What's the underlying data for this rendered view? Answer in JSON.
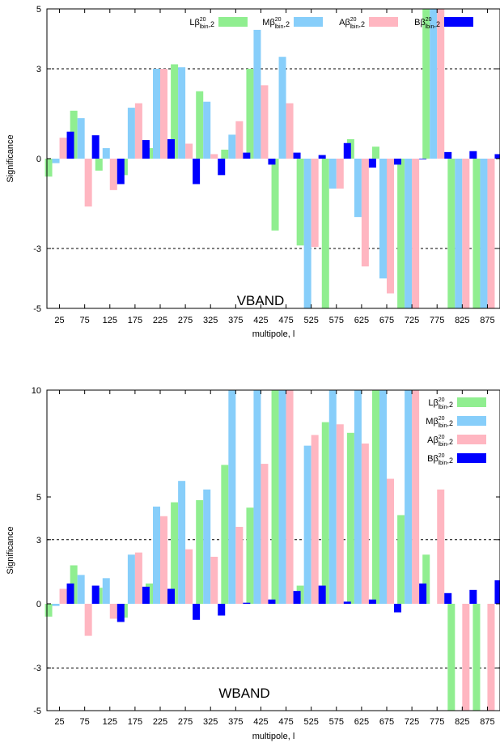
{
  "colors": {
    "L": "#90ee90",
    "M": "#87cefa",
    "A": "#ffb6c1",
    "B": "#0000ff"
  },
  "chart_data": [
    {
      "type": "bar",
      "annotation": "VBAND",
      "xlabel": "multipole, l",
      "ylabel": "Significance",
      "ylim": [
        -5,
        5
      ],
      "yticks": [
        "-5",
        "-3",
        "0",
        "3",
        "5"
      ],
      "yticks_values": [
        -5,
        -3,
        0,
        3,
        5
      ],
      "reference_lines": [
        3,
        -3
      ],
      "legend_placement": "top-right",
      "categories": [
        "25",
        "75",
        "125",
        "175",
        "225",
        "275",
        "325",
        "375",
        "425",
        "475",
        "525",
        "575",
        "625",
        "675",
        "725",
        "775",
        "825",
        "875"
      ],
      "series": [
        {
          "name": "L",
          "values": [
            -0.6,
            1.6,
            -0.4,
            -0.55,
            0.35,
            3.15,
            2.25,
            0.3,
            3.0,
            -2.4,
            -2.9,
            -5.0,
            0.65,
            0.4,
            -5.0,
            5.0,
            -5.0,
            -5.0
          ]
        },
        {
          "name": "M",
          "values": [
            -0.15,
            1.35,
            0.35,
            1.7,
            3.0,
            3.05,
            1.9,
            0.8,
            4.3,
            3.4,
            -5.0,
            -1.0,
            -1.95,
            -4.0,
            -5.0,
            5.0,
            -5.0,
            -5.0
          ]
        },
        {
          "name": "A",
          "values": [
            0.7,
            -1.6,
            -1.05,
            1.85,
            3.0,
            0.5,
            0.15,
            1.25,
            2.45,
            1.85,
            -2.95,
            -1.0,
            -3.6,
            -4.5,
            -5.0,
            5.0,
            -5.0,
            -5.0
          ]
        },
        {
          "name": "B",
          "values": [
            0.9,
            0.78,
            -0.85,
            0.62,
            0.65,
            -0.85,
            -0.55,
            0.2,
            -0.2,
            0.2,
            0.12,
            0.52,
            -0.3,
            -0.2,
            0.0,
            0.22,
            0.25,
            0.15
          ]
        }
      ]
    },
    {
      "type": "bar",
      "annotation": "WBAND",
      "xlabel": "multipole, l",
      "ylabel": "Significance",
      "ylim": [
        -5,
        10
      ],
      "yticks": [
        "-5",
        "-3",
        "0",
        "3",
        "5",
        "10"
      ],
      "yticks_values": [
        -5,
        -3,
        0,
        3,
        5,
        10
      ],
      "reference_lines": [
        3,
        -3
      ],
      "legend_placement": "top-right",
      "categories": [
        "25",
        "75",
        "125",
        "175",
        "225",
        "275",
        "325",
        "375",
        "425",
        "475",
        "525",
        "575",
        "625",
        "675",
        "725",
        "775",
        "825",
        "875"
      ],
      "series": [
        {
          "name": "L",
          "values": [
            -0.6,
            1.8,
            0.75,
            -0.65,
            0.95,
            4.75,
            4.85,
            6.5,
            4.5,
            10.0,
            0.85,
            8.5,
            8.0,
            10.0,
            4.15,
            2.3,
            -5.0,
            -5.0
          ]
        },
        {
          "name": "M",
          "values": [
            -0.1,
            1.35,
            1.2,
            2.3,
            4.55,
            5.75,
            5.35,
            10.0,
            10.0,
            10.0,
            7.4,
            10.0,
            10.0,
            10.0,
            10.0,
            0.0,
            0.0,
            0.0
          ]
        },
        {
          "name": "A",
          "values": [
            0.7,
            -1.5,
            -0.7,
            2.4,
            4.1,
            2.55,
            2.2,
            3.6,
            6.55,
            10.0,
            7.9,
            8.4,
            7.5,
            5.85,
            10.0,
            5.35,
            -5.0,
            -5.0
          ]
        },
        {
          "name": "B",
          "values": [
            0.95,
            0.85,
            -0.85,
            0.8,
            0.7,
            -0.75,
            -0.55,
            0.05,
            0.2,
            0.6,
            0.85,
            0.1,
            0.2,
            -0.4,
            0.95,
            0.5,
            0.65,
            1.1
          ]
        }
      ]
    }
  ]
}
